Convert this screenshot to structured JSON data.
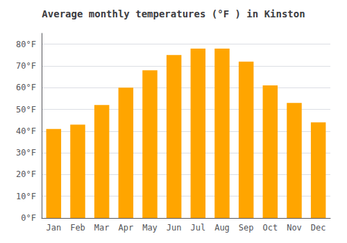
{
  "chart_data": {
    "type": "bar",
    "title": "Average monthly temperatures (°F ) in Kinston",
    "categories": [
      "Jan",
      "Feb",
      "Mar",
      "Apr",
      "May",
      "Jun",
      "Jul",
      "Aug",
      "Sep",
      "Oct",
      "Nov",
      "Dec"
    ],
    "values": [
      41,
      43,
      52,
      60,
      68,
      75,
      78,
      78,
      72,
      61,
      53,
      44
    ],
    "color": "#FFA500",
    "ylim": [
      0,
      85
    ],
    "yticks": [
      {
        "value": 0,
        "label": "0°F"
      },
      {
        "value": 10,
        "label": "10°F"
      },
      {
        "value": 20,
        "label": "20°F"
      },
      {
        "value": 30,
        "label": "30°F"
      },
      {
        "value": 40,
        "label": "40°F"
      },
      {
        "value": 50,
        "label": "50°F"
      },
      {
        "value": 60,
        "label": "60°F"
      },
      {
        "value": 70,
        "label": "70°F"
      },
      {
        "value": 80,
        "label": "80°F"
      }
    ],
    "grid": true
  }
}
